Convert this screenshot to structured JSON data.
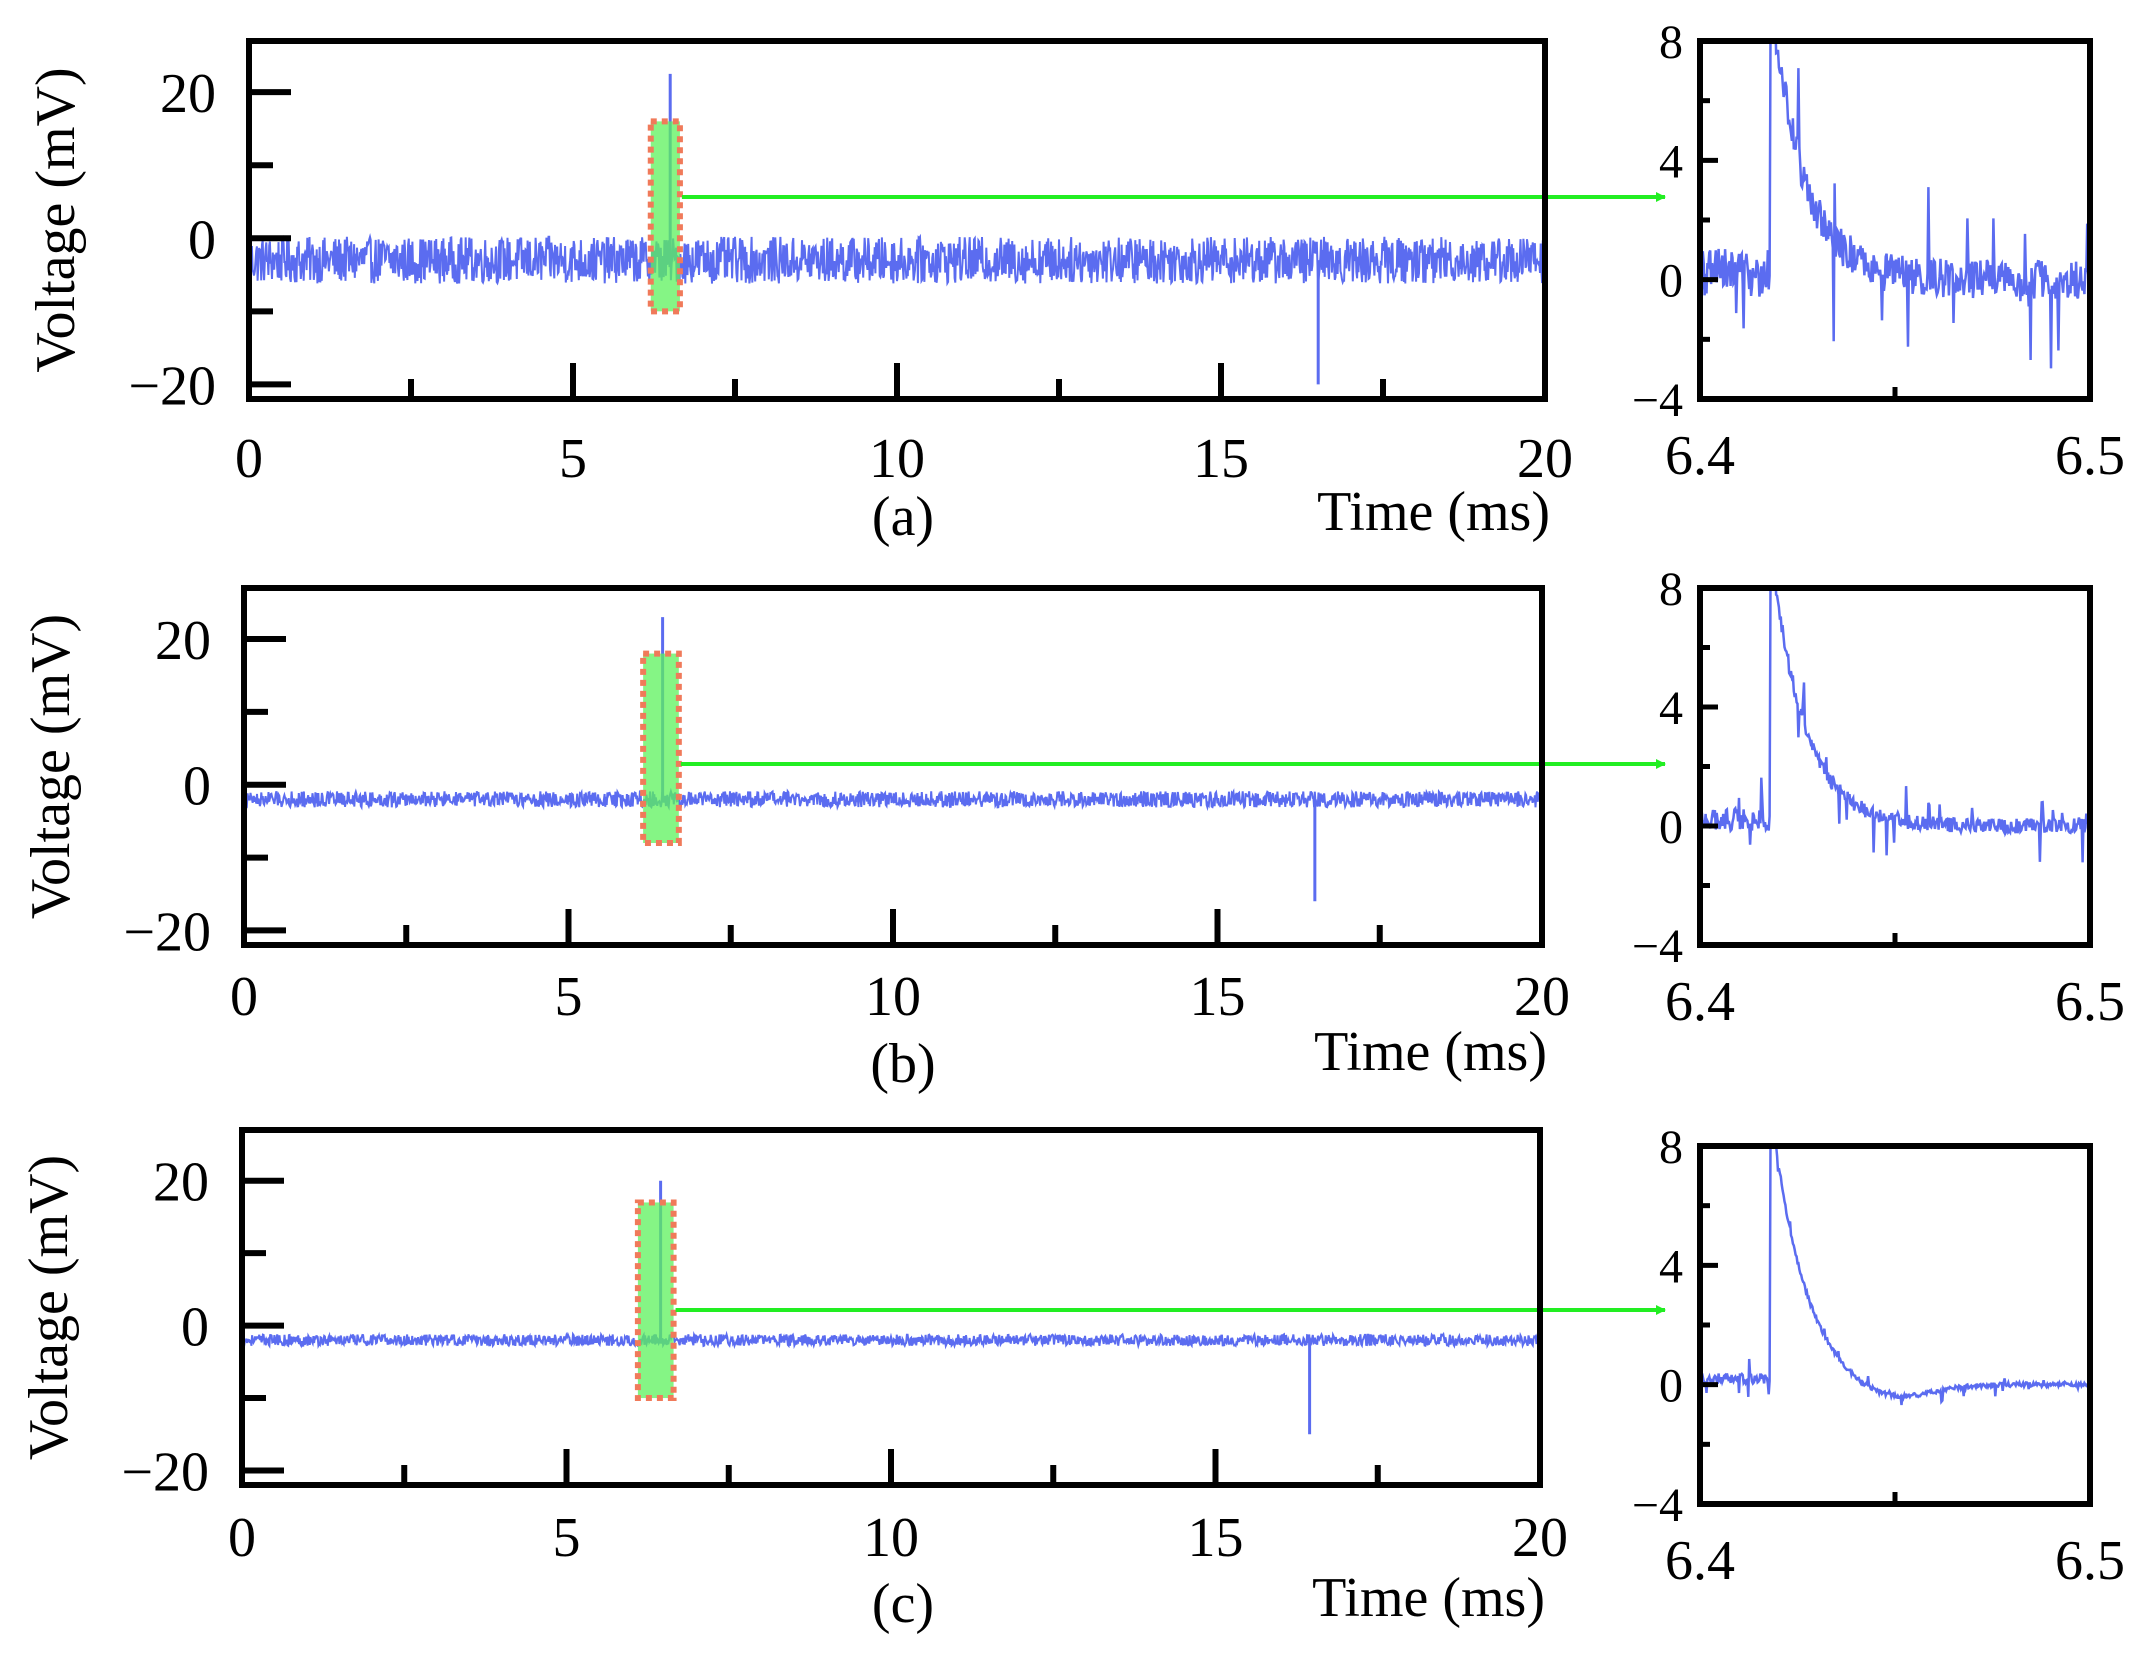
{
  "figure": {
    "trace_color": "#5b6cf0",
    "highlight_color": "#5cf15c",
    "highlight_border_color": "#f07a5a",
    "arrow_color": "#22ee22"
  },
  "chart_data": [
    {
      "id": "a",
      "type": "line",
      "panel_label": "(a)",
      "xlabel": "Time (ms)",
      "ylabel": "Voltage (mV)",
      "xlim": [
        0,
        20
      ],
      "ylim": [
        -22,
        27
      ],
      "x_ticks": [
        0,
        5,
        10,
        15,
        20
      ],
      "x_tick_labels": [
        "0",
        "5",
        "10",
        "15",
        "20"
      ],
      "y_ticks": [
        20,
        0,
        -20
      ],
      "y_tick_labels": [
        "20",
        "0",
        "−20"
      ],
      "baseline": -3,
      "noise_amplitude": 3.2,
      "spikes": [
        {
          "x": 6.5,
          "y": 22.5,
          "label": "positive spike"
        },
        {
          "x": 16.5,
          "y": -20,
          "label": "negative spike"
        }
      ],
      "highlight": {
        "x_start": 6.2,
        "x_end": 6.65,
        "y_low": -10,
        "y_high": 16
      },
      "zoom": {
        "xlim": [
          6.4,
          6.5
        ],
        "ylim": [
          -4,
          8
        ],
        "x_tick_labels": [
          "6.4",
          "6.5"
        ],
        "y_ticks": [
          8,
          4,
          0,
          -4
        ],
        "y_tick_labels": [
          "8",
          "4",
          "0",
          "−4"
        ],
        "spike_x": 6.418,
        "noise_pre": 1.4,
        "noise_post": 1.3
      }
    },
    {
      "id": "b",
      "type": "line",
      "panel_label": "(b)",
      "xlabel": "Time (ms)",
      "ylabel": "Voltage (mV)",
      "xlim": [
        0,
        20
      ],
      "ylim": [
        -22,
        27
      ],
      "x_ticks": [
        0,
        5,
        10,
        15,
        20
      ],
      "x_tick_labels": [
        "0",
        "5",
        "10",
        "15",
        "20"
      ],
      "y_ticks": [
        20,
        0,
        -20
      ],
      "y_tick_labels": [
        "20",
        "0",
        "−20"
      ],
      "baseline": -2,
      "noise_amplitude": 1.1,
      "spikes": [
        {
          "x": 6.45,
          "y": 23,
          "label": "positive spike"
        },
        {
          "x": 16.5,
          "y": -16,
          "label": "negative spike"
        }
      ],
      "highlight": {
        "x_start": 6.15,
        "x_end": 6.7,
        "y_low": -8,
        "y_high": 18
      },
      "zoom": {
        "xlim": [
          6.4,
          6.5
        ],
        "ylim": [
          -4,
          8
        ],
        "x_tick_labels": [
          "6.4",
          "6.5"
        ],
        "y_ticks": [
          8,
          4,
          0,
          -4
        ],
        "y_tick_labels": [
          "8",
          "4",
          "0",
          "−4"
        ],
        "spike_x": 6.418,
        "noise_pre": 0.6,
        "noise_post": 0.5
      }
    },
    {
      "id": "c",
      "type": "line",
      "panel_label": "(c)",
      "xlabel": "Time (ms)",
      "ylabel": "Voltage (mV)",
      "xlim": [
        0,
        20
      ],
      "ylim": [
        -22,
        27
      ],
      "x_ticks": [
        0,
        5,
        10,
        15,
        20
      ],
      "x_tick_labels": [
        "0",
        "5",
        "10",
        "15",
        "20"
      ],
      "y_ticks": [
        20,
        0,
        -20
      ],
      "y_tick_labels": [
        "20",
        "0",
        "−20"
      ],
      "baseline": -2,
      "noise_amplitude": 0.8,
      "spikes": [
        {
          "x": 6.45,
          "y": 20,
          "label": "positive spike"
        },
        {
          "x": 16.45,
          "y": -15,
          "label": "negative spike"
        }
      ],
      "highlight": {
        "x_start": 6.1,
        "x_end": 6.65,
        "y_low": -10,
        "y_high": 17
      },
      "zoom": {
        "xlim": [
          6.4,
          6.5
        ],
        "ylim": [
          -4,
          8
        ],
        "x_tick_labels": [
          "6.4",
          "6.5"
        ],
        "y_ticks": [
          8,
          4,
          0,
          -4
        ],
        "y_tick_labels": [
          "8",
          "4",
          "0",
          "−4"
        ],
        "spike_x": 6.418,
        "noise_pre": 0.3,
        "noise_post": 0.15
      }
    }
  ]
}
